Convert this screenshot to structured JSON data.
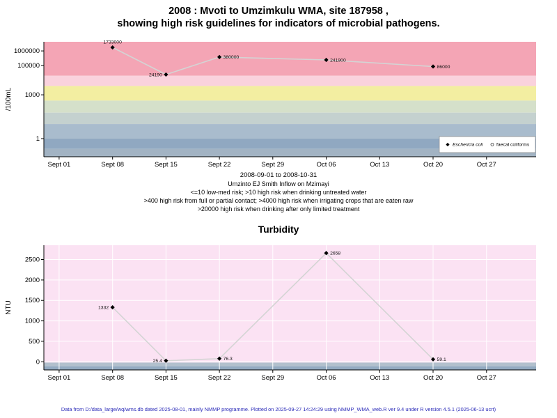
{
  "title": {
    "line1": "2008 : Mvoti to Umzimkulu WMA, site 187958 ,",
    "line2": "showing high risk guidelines for indicators of microbial pathogens."
  },
  "footer": {
    "text": "Data from D:/data_large/wq/wms.db dated 2025-08-01, mainly NMMP programme. Plotted on 2025-09-27 14:24:29 using NMMP_WMA_web.R ver 9.4 under R version 4.5.1 (2025-06-13 ucrt)",
    "color": "#2a2ab8"
  },
  "chart_data": [
    {
      "type": "scatter",
      "name": "microbial-pathogens",
      "title": "",
      "ylabel": "/100mL",
      "yscale": "log",
      "ylim": [
        0.058,
        4200000
      ],
      "xlabel": "2008-09-01 to 2008-10-31",
      "xlim": [
        -2,
        62.5
      ],
      "grid": false,
      "line_color": "#d4d4d4",
      "point_color": "#000000",
      "xticks": [
        {
          "x": 0,
          "label": "Sept 01"
        },
        {
          "x": 7,
          "label": "Sept 08"
        },
        {
          "x": 14,
          "label": "Sept 15"
        },
        {
          "x": 21,
          "label": "Sept 22"
        },
        {
          "x": 28,
          "label": "Sept 29"
        },
        {
          "x": 35,
          "label": "Oct 06"
        },
        {
          "x": 42,
          "label": "Oct 13"
        },
        {
          "x": 49,
          "label": "Oct 20"
        },
        {
          "x": 56,
          "label": "Oct 27"
        }
      ],
      "yticks": [
        {
          "v": 1,
          "label": "1"
        },
        {
          "v": 1000,
          "label": "1000"
        },
        {
          "v": 100000,
          "label": "100000"
        },
        {
          "v": 1000000,
          "label": "1000000"
        }
      ],
      "bands": [
        {
          "from": 20000,
          "to": 4200000,
          "color": "#f4a5b5"
        },
        {
          "from": 4000,
          "to": 20000,
          "color": "#fad2dd"
        },
        {
          "from": 400,
          "to": 4000,
          "color": "#f3eea1"
        },
        {
          "from": 60,
          "to": 400,
          "color": "#d5e0ca"
        },
        {
          "from": 10,
          "to": 60,
          "color": "#c4d1cf"
        },
        {
          "from": 1,
          "to": 10,
          "color": "#a9bccd"
        },
        {
          "from": 0.2,
          "to": 1,
          "color": "#90a8c1"
        },
        {
          "from": 0.058,
          "to": 0.2,
          "color": "#a2b3c3"
        }
      ],
      "series": [
        {
          "name": "Eschericia coli",
          "marker": "diamond",
          "points": [
            {
              "x": 7,
              "date": "Sept 08",
              "y": 1733000,
              "label": "1733000",
              "pos": "above"
            },
            {
              "x": 14,
              "date": "Sept 15",
              "y": 24190,
              "label": "24190",
              "pos": "left"
            },
            {
              "x": 21,
              "date": "Sept 22",
              "y": 380000,
              "label": "380000",
              "pos": "right"
            },
            {
              "x": 35,
              "date": "Oct 06",
              "y": 241900,
              "label": "241900",
              "pos": "right"
            },
            {
              "x": 49,
              "date": "Oct 20",
              "y": 86000,
              "label": "86000",
              "pos": "right"
            }
          ]
        }
      ],
      "legend": {
        "entries": [
          {
            "marker": "diamond",
            "label": "Eschericia coli",
            "italic": true
          },
          {
            "marker": "circle",
            "label": "faecal coliforms",
            "italic": false
          }
        ]
      },
      "captions": [
        "Umzinto EJ Smith Inflow on Mzimayi",
        "<=10 low-med risk; >10 high risk when drinking untreated water",
        ">400 high risk from full or partial contact; >4000 high risk when irrigating crops that are eaten raw",
        ">20000 high risk when drinking after only limited treatment"
      ]
    },
    {
      "type": "scatter",
      "name": "turbidity",
      "title": "Turbidity",
      "ylabel": "NTU",
      "yscale": "linear",
      "ylim": [
        -200,
        2850
      ],
      "xlabel": "",
      "xlim": [
        -2,
        62.5
      ],
      "grid": true,
      "line_color": "#d4d4d4",
      "point_color": "#000000",
      "xticks": [
        {
          "x": 0,
          "label": "Sept 01"
        },
        {
          "x": 7,
          "label": "Sept 08"
        },
        {
          "x": 14,
          "label": "Sept 15"
        },
        {
          "x": 21,
          "label": "Sept 22"
        },
        {
          "x": 28,
          "label": "Sept 29"
        },
        {
          "x": 35,
          "label": "Oct 06"
        },
        {
          "x": 42,
          "label": "Oct 13"
        },
        {
          "x": 49,
          "label": "Oct 20"
        },
        {
          "x": 56,
          "label": "Oct 27"
        }
      ],
      "yticks": [
        {
          "v": 0,
          "label": "0"
        },
        {
          "v": 500,
          "label": "500"
        },
        {
          "v": 1000,
          "label": "1000"
        },
        {
          "v": 1500,
          "label": "1500"
        },
        {
          "v": 2000,
          "label": "2000"
        },
        {
          "v": 2500,
          "label": "2500"
        }
      ],
      "bands": [
        {
          "from": -20,
          "to": 2850,
          "color": "#fbe2f3"
        },
        {
          "from": -110,
          "to": -20,
          "color": "#b2c0cd"
        },
        {
          "from": -200,
          "to": -110,
          "color": "#93aac1"
        }
      ],
      "series": [
        {
          "name": "Turbidity",
          "marker": "diamond",
          "points": [
            {
              "x": 7,
              "date": "Sept 08",
              "y": 1332,
              "label": "1332",
              "pos": "left"
            },
            {
              "x": 14,
              "date": "Sept 15",
              "y": 25.4,
              "label": "25.4",
              "pos": "left"
            },
            {
              "x": 21,
              "date": "Sept 22",
              "y": 76.3,
              "label": "76.3",
              "pos": "right"
            },
            {
              "x": 35,
              "date": "Oct 06",
              "y": 2658,
              "label": "2658",
              "pos": "right"
            },
            {
              "x": 49,
              "date": "Oct 20",
              "y": 59.1,
              "label": "59.1",
              "pos": "right"
            }
          ]
        }
      ]
    }
  ]
}
